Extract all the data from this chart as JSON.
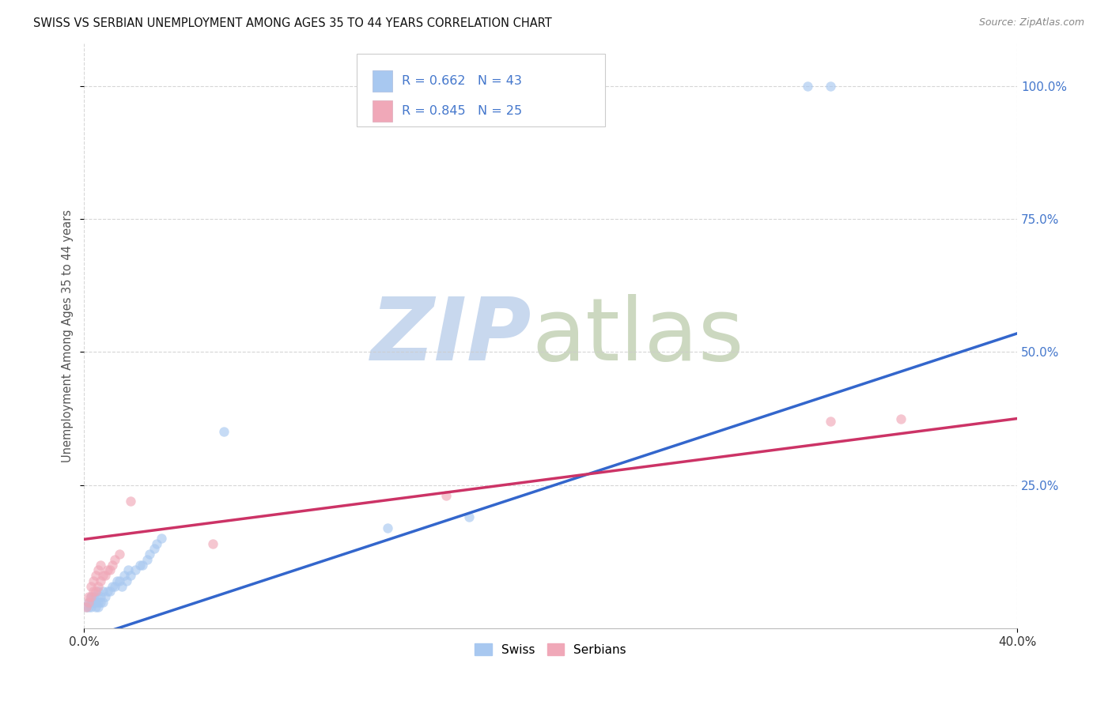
{
  "title": "SWISS VS SERBIAN UNEMPLOYMENT AMONG AGES 35 TO 44 YEARS CORRELATION CHART",
  "source": "Source: ZipAtlas.com",
  "ylabel": "Unemployment Among Ages 35 to 44 years",
  "xlim": [
    0.0,
    0.4
  ],
  "ylim": [
    -0.02,
    1.08
  ],
  "ytick_values": [
    0.25,
    0.5,
    0.75,
    1.0
  ],
  "ytick_labels": [
    "25.0%",
    "50.0%",
    "75.0%",
    "100.0%"
  ],
  "swiss_color": "#a8c8f0",
  "serbian_color": "#f0a8b8",
  "swiss_line_color": "#3366cc",
  "serbian_line_color": "#cc3366",
  "swiss_R": 0.662,
  "swiss_N": 43,
  "serbian_R": 0.845,
  "serbian_N": 25,
  "legend_text_color": "#4477cc",
  "swiss_line_x0": 0.0,
  "swiss_line_y0": -0.04,
  "swiss_line_x1": 0.4,
  "swiss_line_y1": 0.535,
  "serbian_line_x0": 0.0,
  "serbian_line_y0": 0.148,
  "serbian_line_x1": 0.4,
  "serbian_line_y1": 0.375,
  "swiss_x": [
    0.001,
    0.002,
    0.002,
    0.003,
    0.003,
    0.003,
    0.004,
    0.004,
    0.005,
    0.005,
    0.005,
    0.006,
    0.006,
    0.006,
    0.007,
    0.007,
    0.008,
    0.008,
    0.009,
    0.01,
    0.011,
    0.012,
    0.013,
    0.014,
    0.015,
    0.016,
    0.017,
    0.018,
    0.019,
    0.02,
    0.022,
    0.024,
    0.025,
    0.027,
    0.028,
    0.03,
    0.031,
    0.033,
    0.06,
    0.13,
    0.165,
    0.31,
    0.32
  ],
  "swiss_y": [
    0.02,
    0.02,
    0.03,
    0.02,
    0.03,
    0.04,
    0.03,
    0.04,
    0.02,
    0.03,
    0.04,
    0.02,
    0.03,
    0.05,
    0.03,
    0.04,
    0.03,
    0.05,
    0.04,
    0.05,
    0.05,
    0.06,
    0.06,
    0.07,
    0.07,
    0.06,
    0.08,
    0.07,
    0.09,
    0.08,
    0.09,
    0.1,
    0.1,
    0.11,
    0.12,
    0.13,
    0.14,
    0.15,
    0.35,
    0.17,
    0.19,
    1.0,
    1.0
  ],
  "serbian_x": [
    0.001,
    0.002,
    0.002,
    0.003,
    0.003,
    0.004,
    0.004,
    0.005,
    0.005,
    0.006,
    0.006,
    0.007,
    0.007,
    0.008,
    0.009,
    0.01,
    0.011,
    0.012,
    0.013,
    0.015,
    0.02,
    0.055,
    0.155,
    0.32,
    0.35
  ],
  "serbian_y": [
    0.02,
    0.03,
    0.04,
    0.04,
    0.06,
    0.05,
    0.07,
    0.05,
    0.08,
    0.06,
    0.09,
    0.07,
    0.1,
    0.08,
    0.08,
    0.09,
    0.09,
    0.1,
    0.11,
    0.12,
    0.22,
    0.14,
    0.23,
    0.37,
    0.375
  ]
}
